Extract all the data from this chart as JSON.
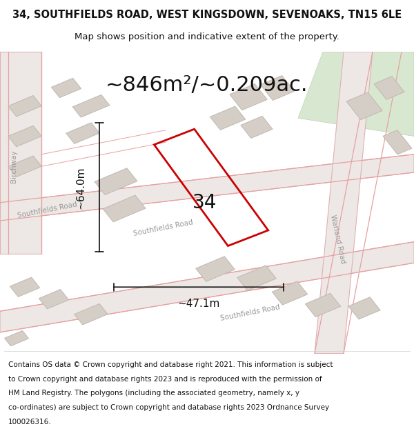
{
  "title_line1": "34, SOUTHFIELDS ROAD, WEST KINGSDOWN, SEVENOAKS, TN15 6LE",
  "title_line2": "Map shows position and indicative extent of the property.",
  "area_text": "~846m²/~0.209ac.",
  "width_label": "~47.1m",
  "height_label": "~64.0m",
  "property_number": "34",
  "map_bg_color": "#f0eeeb",
  "highlight_color": "#cc0000",
  "dim_line_color": "#111111",
  "road_label_color": "#999999",
  "title_fontsize": 10.5,
  "subtitle_fontsize": 9.5,
  "area_fontsize": 22,
  "dim_fontsize": 11,
  "number_fontsize": 20,
  "footer_fontsize": 7.5,
  "road_label_fontsize": 7.5,
  "footer_lines": [
    "Contains OS data © Crown copyright and database right 2021. This information is subject",
    "to Crown copyright and database rights 2023 and is reproduced with the permission of",
    "HM Land Registry. The polygons (including the associated geometry, namely x, y",
    "co-ordinates) are subject to Crown copyright and database rights 2023 Ordnance Survey",
    "100026316."
  ]
}
